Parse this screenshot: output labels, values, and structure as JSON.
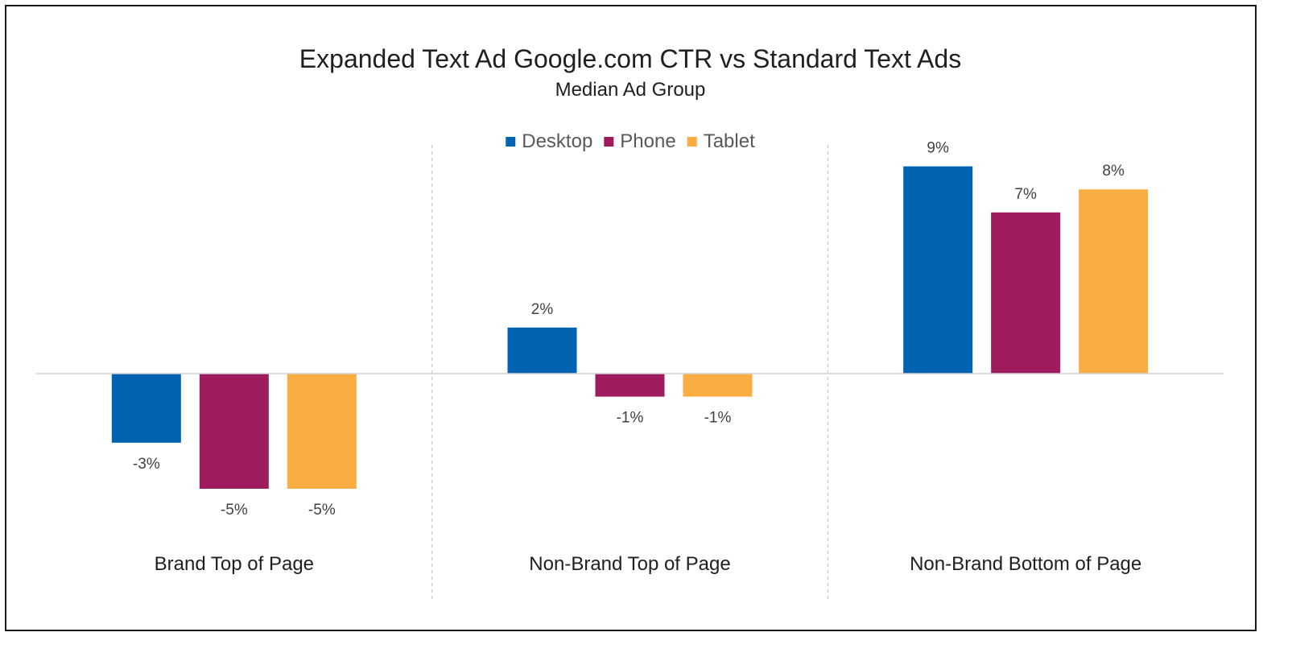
{
  "chart_data": {
    "type": "bar",
    "title": "Expanded Text Ad Google.com CTR vs Standard Text Ads",
    "subtitle": "Median Ad Group",
    "categories": [
      "Brand Top of Page",
      "Non-Brand Top of Page",
      "Non-Brand Bottom of Page"
    ],
    "series": [
      {
        "name": "Desktop",
        "color": "#0063B1",
        "values": [
          -3,
          2,
          9
        ],
        "labels": [
          "-3%",
          "2%",
          "9%"
        ]
      },
      {
        "name": "Phone",
        "color": "#9E1B5E",
        "values": [
          -5,
          -1,
          7
        ],
        "labels": [
          "-5%",
          "-1%",
          "7%"
        ]
      },
      {
        "name": "Tablet",
        "color": "#F9AD42",
        "values": [
          -5,
          -1,
          8
        ],
        "labels": [
          "-5%",
          "-1%",
          "8%"
        ]
      }
    ],
    "ylim": [
      -6,
      10
    ],
    "legend_position": "top",
    "grid": false
  }
}
